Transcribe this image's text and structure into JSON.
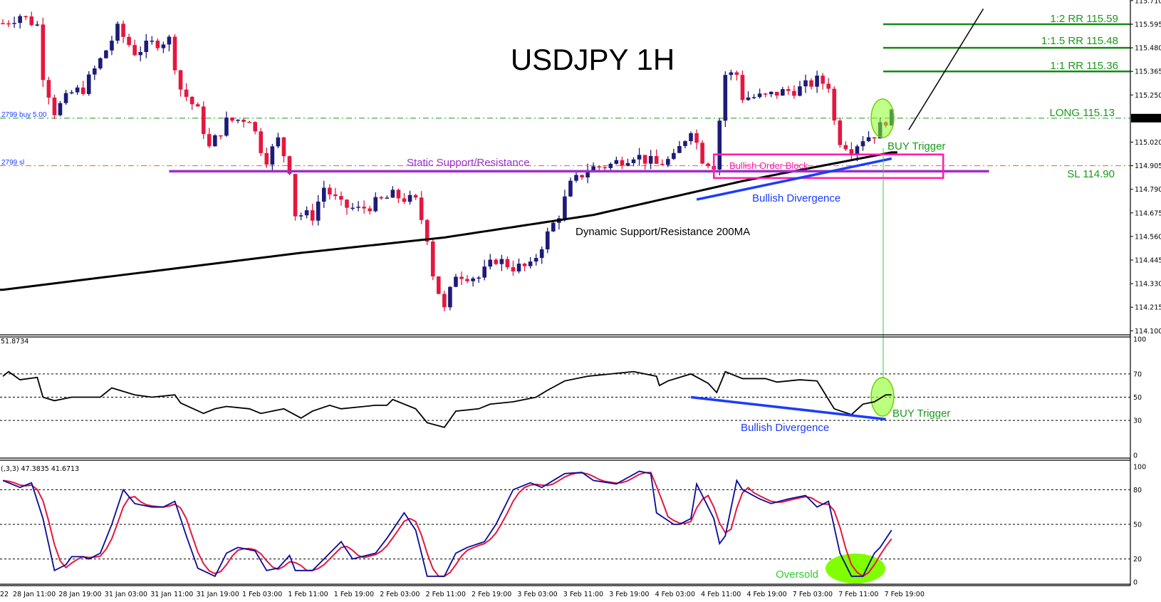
{
  "chart_data": [
    {
      "type": "candlestick",
      "title": "USDJPY 1H",
      "symbol": "USDJPY",
      "timeframe": "1H",
      "price_ticks": [
        "115.710",
        "115.595",
        "115.480",
        "115.365",
        "115.250",
        "115.137",
        "115.020",
        "114.905",
        "114.790",
        "114.675",
        "114.560",
        "114.445",
        "114.330",
        "114.215",
        "114.100"
      ],
      "current_price": "115.137",
      "time_ticks": [
        "22",
        "28 Jan 11:00",
        "28 Jan 19:00",
        "31 Jan 03:00",
        "31 Jan 11:00",
        "31 Jan 19:00",
        "1 Feb 03:00",
        "1 Feb 11:00",
        "1 Feb 19:00",
        "2 Feb 03:00",
        "2 Feb 11:00",
        "2 Feb 19:00",
        "3 Feb 03:00",
        "3 Feb 11:00",
        "3 Feb 19:00",
        "4 Feb 03:00",
        "4 Feb 11:00",
        "4 Feb 19:00",
        "7 Feb 03:00",
        "7 Feb 11:00",
        "7 Feb 19:00"
      ],
      "close_path_bar_price": [
        [
          0,
          115.6
        ],
        [
          3,
          115.64
        ],
        [
          6,
          115.59
        ],
        [
          7,
          115.35
        ],
        [
          9,
          115.17
        ],
        [
          12,
          115.26
        ],
        [
          14,
          115.28
        ],
        [
          17,
          115.42
        ],
        [
          20,
          115.57
        ],
        [
          23,
          115.46
        ],
        [
          26,
          115.5
        ],
        [
          29,
          115.52
        ],
        [
          31,
          115.28
        ],
        [
          34,
          115.17
        ],
        [
          36,
          114.99
        ],
        [
          39,
          115.12
        ],
        [
          43,
          115.14
        ],
        [
          45,
          114.99
        ],
        [
          46,
          114.94
        ],
        [
          48,
          115.03
        ],
        [
          50,
          114.89
        ],
        [
          51,
          114.67
        ],
        [
          54,
          114.66
        ],
        [
          56,
          114.8
        ],
        [
          59,
          114.71
        ],
        [
          62,
          114.69
        ],
        [
          64,
          114.71
        ],
        [
          68,
          114.76
        ],
        [
          72,
          114.73
        ],
        [
          74,
          114.56
        ],
        [
          75,
          114.38
        ],
        [
          77,
          114.2
        ],
        [
          79,
          114.38
        ],
        [
          83,
          114.36
        ],
        [
          86,
          114.45
        ],
        [
          89,
          114.41
        ],
        [
          92,
          114.41
        ],
        [
          94,
          114.52
        ],
        [
          97,
          114.67
        ],
        [
          99,
          114.81
        ],
        [
          102,
          114.89
        ],
        [
          106,
          114.91
        ],
        [
          110,
          114.96
        ],
        [
          114,
          114.91
        ],
        [
          117,
          114.94
        ],
        [
          120,
          115.09
        ],
        [
          122,
          114.94
        ],
        [
          124,
          114.91
        ],
        [
          126,
          115.35
        ],
        [
          128,
          115.35
        ],
        [
          129,
          115.24
        ],
        [
          133,
          115.24
        ],
        [
          135,
          115.26
        ],
        [
          139,
          115.28
        ],
        [
          142,
          115.32
        ],
        [
          144,
          115.3
        ],
        [
          145,
          115.12
        ],
        [
          146,
          115.03
        ],
        [
          148,
          114.99
        ],
        [
          150,
          115.04
        ],
        [
          152,
          115.06
        ],
        [
          154,
          115.13
        ],
        [
          155,
          115.15
        ]
      ],
      "ma200": {
        "label": "Dynamic Support/Resistance 200MA",
        "color": "#000000",
        "points": [
          [
            0,
            114.3
          ],
          [
            52,
            114.48
          ],
          [
            77,
            114.555
          ],
          [
            103,
            114.665
          ],
          [
            129,
            114.83
          ],
          [
            155,
            114.97
          ]
        ]
      },
      "static_sr": {
        "label": "Static Support/Resistance",
        "price": 114.878,
        "from_bar": 29,
        "to_bar": 172,
        "color": "#9b30c8"
      },
      "order_block": {
        "label": "Bullish Order Block",
        "from_bar": 124,
        "to_bar": 164,
        "high": 114.96,
        "low": 114.845,
        "color": "#ff1ca8"
      },
      "divergence": {
        "label": "Bullish Divergence",
        "color": "#1a3cff",
        "from": [
          121,
          114.74
        ],
        "to": [
          155,
          114.94
        ]
      },
      "trend_line": {
        "from": [
          158,
          115.08
        ],
        "to": [
          171,
          115.67
        ]
      },
      "levels": [
        {
          "label": "1:2 RR 115.59",
          "price": 115.595,
          "color": "#138a13"
        },
        {
          "label": "1:1.5 RR 115.48",
          "price": 115.48,
          "color": "#138a13"
        },
        {
          "label": "1:1 RR 115.36",
          "price": 115.365,
          "color": "#138a13"
        }
      ],
      "long": {
        "label": "LONG 115.13",
        "price": 115.137,
        "order_text": "2799 buy 5.00",
        "color": "#1a9a1a"
      },
      "stop": {
        "label": "SL 114.90",
        "price": 114.905,
        "order_text": "2799 sl",
        "color": "#ff5a1a"
      },
      "buy_trigger": "BUY Trigger",
      "colors": {
        "bull": "#1c1c78",
        "bear": "#e5173f"
      }
    },
    {
      "type": "line",
      "indicator": "RSI",
      "readout": "51.8734",
      "ylim": [
        0,
        100
      ],
      "ticks": [
        "100",
        "70",
        "50",
        "30",
        "0"
      ],
      "levels": [
        70,
        50,
        30
      ],
      "points_bar_value": [
        [
          0,
          68
        ],
        [
          1,
          72
        ],
        [
          3,
          65
        ],
        [
          6,
          67
        ],
        [
          7,
          50
        ],
        [
          9,
          47
        ],
        [
          12,
          50
        ],
        [
          14,
          50
        ],
        [
          17,
          50
        ],
        [
          19,
          58
        ],
        [
          23,
          52
        ],
        [
          26,
          50
        ],
        [
          30,
          52
        ],
        [
          31,
          45
        ],
        [
          35,
          36
        ],
        [
          37,
          40
        ],
        [
          39,
          42
        ],
        [
          43,
          40
        ],
        [
          45,
          36
        ],
        [
          49,
          40
        ],
        [
          52,
          32
        ],
        [
          54,
          38
        ],
        [
          57,
          43
        ],
        [
          59,
          40
        ],
        [
          65,
          43
        ],
        [
          67,
          43
        ],
        [
          68,
          48
        ],
        [
          72,
          40
        ],
        [
          74,
          28
        ],
        [
          77,
          24
        ],
        [
          79,
          38
        ],
        [
          83,
          40
        ],
        [
          85,
          44
        ],
        [
          89,
          46
        ],
        [
          93,
          50
        ],
        [
          95,
          56
        ],
        [
          98,
          64
        ],
        [
          102,
          68
        ],
        [
          106,
          70
        ],
        [
          110,
          72
        ],
        [
          114,
          68
        ],
        [
          114.5,
          60
        ],
        [
          116,
          64
        ],
        [
          120,
          70
        ],
        [
          123,
          62
        ],
        [
          124.5,
          54
        ],
        [
          126,
          72
        ],
        [
          129,
          66
        ],
        [
          133,
          66
        ],
        [
          135,
          63
        ],
        [
          139,
          65
        ],
        [
          142,
          64
        ],
        [
          143,
          56
        ],
        [
          145,
          40
        ],
        [
          148,
          35
        ],
        [
          150,
          44
        ],
        [
          152,
          46
        ],
        [
          154,
          52
        ],
        [
          155,
          52
        ]
      ],
      "divergence": {
        "label": "Bullish Divergence",
        "from": [
          120,
          50
        ],
        "to": [
          154,
          31
        ]
      },
      "buy_trigger": "BUY Trigger"
    },
    {
      "type": "line",
      "indicator": "Stochastic",
      "readout": "(,3,3) 47.3835 41.6713",
      "ylim": [
        0,
        100
      ],
      "ticks": [
        "100",
        "80",
        "50",
        "20",
        "0"
      ],
      "levels": [
        80,
        50,
        20
      ],
      "k_color": "#0a0a9a",
      "d_color": "#e5173f",
      "k_points_bar_value": [
        [
          0,
          88
        ],
        [
          3,
          82
        ],
        [
          5,
          86
        ],
        [
          7,
          55
        ],
        [
          9,
          10
        ],
        [
          11,
          15
        ],
        [
          12,
          22
        ],
        [
          14,
          22
        ],
        [
          15,
          20
        ],
        [
          17,
          25
        ],
        [
          19,
          50
        ],
        [
          21,
          80
        ],
        [
          23,
          68
        ],
        [
          26,
          65
        ],
        [
          28,
          65
        ],
        [
          30,
          70
        ],
        [
          32,
          40
        ],
        [
          34,
          12
        ],
        [
          37,
          5
        ],
        [
          39,
          25
        ],
        [
          41,
          30
        ],
        [
          44,
          27
        ],
        [
          46,
          10
        ],
        [
          48,
          12
        ],
        [
          50,
          23
        ],
        [
          51,
          10
        ],
        [
          54,
          10
        ],
        [
          57,
          25
        ],
        [
          59,
          35
        ],
        [
          61,
          20
        ],
        [
          65,
          25
        ],
        [
          67,
          38
        ],
        [
          70,
          60
        ],
        [
          72,
          45
        ],
        [
          74,
          5
        ],
        [
          77,
          5
        ],
        [
          79,
          25
        ],
        [
          81,
          30
        ],
        [
          84,
          35
        ],
        [
          86,
          50
        ],
        [
          89,
          80
        ],
        [
          92,
          86
        ],
        [
          94,
          82
        ],
        [
          98,
          94
        ],
        [
          101,
          95
        ],
        [
          103,
          88
        ],
        [
          107,
          85
        ],
        [
          111,
          96
        ],
        [
          113,
          94
        ],
        [
          114,
          60
        ],
        [
          117,
          50
        ],
        [
          118,
          50
        ],
        [
          120,
          55
        ],
        [
          121,
          85
        ],
        [
          124,
          55
        ],
        [
          124.5,
          30
        ],
        [
          126,
          40
        ],
        [
          128,
          88
        ],
        [
          129,
          80
        ],
        [
          132,
          72
        ],
        [
          134,
          68
        ],
        [
          137,
          72
        ],
        [
          140,
          75
        ],
        [
          142,
          65
        ],
        [
          144,
          70
        ],
        [
          146,
          25
        ],
        [
          148,
          5
        ],
        [
          150,
          5
        ],
        [
          152,
          25
        ],
        [
          153,
          30
        ],
        [
          155,
          45
        ]
      ],
      "oversold_label": "Oversold"
    }
  ]
}
